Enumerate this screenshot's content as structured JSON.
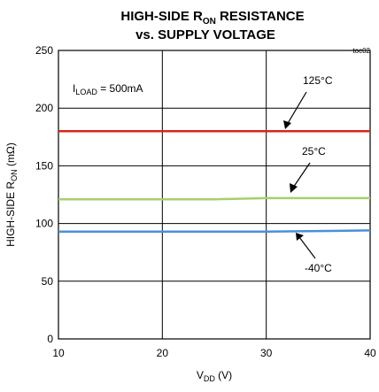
{
  "chart_data": {
    "type": "line",
    "title_line1_main": "HIGH-SIDE R",
    "title_line1_sub": "ON",
    "title_line1_tail": " RESISTANCE",
    "title_line2": "vs. SUPPLY VOLTAGE",
    "figure_id": "toc02",
    "xlabel_main": "V",
    "xlabel_sub": "DD",
    "xlabel_tail": " (V)",
    "ylabel_main": "HIGH-SIDE R",
    "ylabel_sub": "ON",
    "ylabel_tail": " (mΩ)",
    "xlim": [
      10,
      40
    ],
    "ylim": [
      0,
      250
    ],
    "xticks": [
      10,
      20,
      30,
      40
    ],
    "yticks": [
      0,
      50,
      100,
      150,
      200,
      250
    ],
    "grid": true,
    "load_note_main": "I",
    "load_note_sub": "LOAD",
    "load_note_tail": " = 500mA",
    "series": [
      {
        "name": "125°C",
        "color": "#d7261e",
        "x": [
          10,
          20,
          30,
          40
        ],
        "y": [
          180,
          180,
          180,
          180
        ]
      },
      {
        "name": "25°C",
        "color": "#a8cf6b",
        "x": [
          10,
          20,
          25,
          30,
          40
        ],
        "y": [
          121,
          121,
          121,
          122,
          122
        ]
      },
      {
        "name": "-40°C",
        "color": "#4a90d9",
        "x": [
          10,
          20,
          30,
          40
        ],
        "y": [
          93,
          93,
          93,
          94
        ]
      }
    ]
  }
}
